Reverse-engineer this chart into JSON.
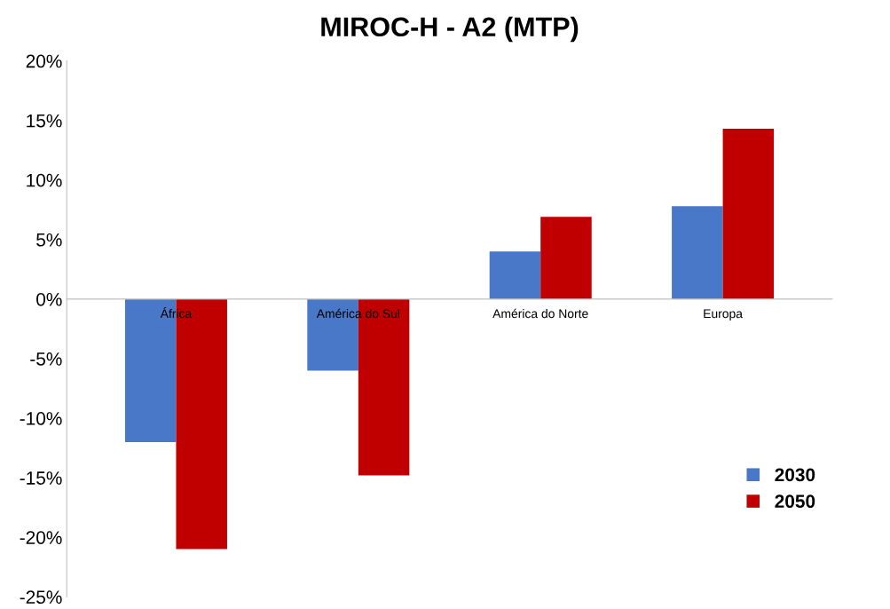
{
  "chart_data": {
    "type": "bar",
    "title": "MIROC-H - A2 (MTP)",
    "categories": [
      "África",
      "América do Sul",
      "América do Norte",
      "Europa"
    ],
    "series": [
      {
        "name": "2030",
        "color": "#4a78c8",
        "values": [
          -12,
          -6,
          4,
          7.8
        ]
      },
      {
        "name": "2050",
        "color": "#c00000",
        "values": [
          -21,
          -14.8,
          6.9,
          14.3
        ]
      }
    ],
    "ylim": [
      -25,
      20
    ],
    "yticks": [
      {
        "value": -25,
        "label": "-25%"
      },
      {
        "value": -20,
        "label": "-20%"
      },
      {
        "value": -15,
        "label": "-15%"
      },
      {
        "value": -10,
        "label": "-10%"
      },
      {
        "value": -5,
        "label": "-5%"
      },
      {
        "value": 0,
        "label": "0%"
      },
      {
        "value": 5,
        "label": "5%"
      },
      {
        "value": 10,
        "label": "10%"
      },
      {
        "value": 15,
        "label": "15%"
      },
      {
        "value": 20,
        "label": "20%"
      }
    ],
    "grid": false,
    "legend": "right"
  }
}
